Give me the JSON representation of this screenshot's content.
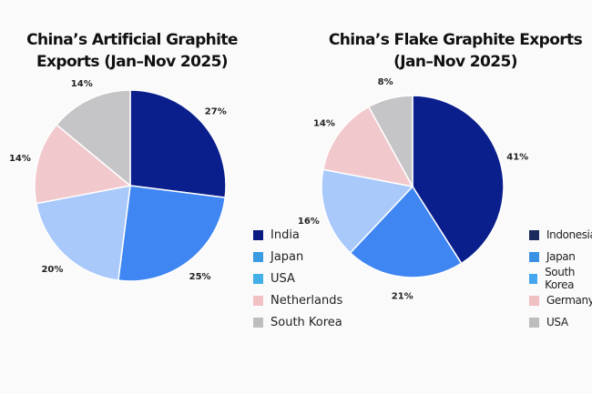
{
  "chart_data": [
    {
      "type": "pie",
      "title": "China’s Artificial Graphite Exports (Jan–Nov 2025)",
      "title_lines": [
        "China’s Artificial Graphite",
        "Exports (Jan–Nov 2025)"
      ],
      "categories": [
        "India",
        "Japan",
        "USA",
        "Netherlands",
        "South Korea"
      ],
      "values": [
        27,
        25,
        20,
        14,
        14
      ],
      "labels": [
        "27%",
        "25%",
        "20%",
        "14%",
        "14%"
      ],
      "colors": [
        "#0b1f8c",
        "#3f86f2",
        "#a9c9fa",
        "#f1c9cd",
        "#c5c5c7"
      ],
      "legend_colors": [
        "#0b1a80",
        "#3a9be2",
        "#43afe8",
        "#f1c0c3",
        "#bdbdbd"
      ],
      "legend_placement": "right"
    },
    {
      "type": "pie",
      "title": "China’s Flake Graphite Exports (Jan–Nov 2025)",
      "title_lines": [
        "China’s Flake Graphite Exports",
        "(Jan–Nov 2025)"
      ],
      "categories": [
        "Indonesia",
        "Japan",
        "South Korea",
        "Germany",
        "USA"
      ],
      "values": [
        41,
        21,
        16,
        14,
        8
      ],
      "labels": [
        "41%",
        "21%",
        "16%",
        "14%",
        "8%"
      ],
      "colors": [
        "#0b1f8c",
        "#3f86f2",
        "#a9c9fa",
        "#f1c9cd",
        "#c5c5c7"
      ],
      "legend_colors": [
        "#1c2a5e",
        "#3a90e2",
        "#43a6ee",
        "#f1c0c3",
        "#bdbdbd"
      ],
      "legend_placement": "right"
    }
  ]
}
